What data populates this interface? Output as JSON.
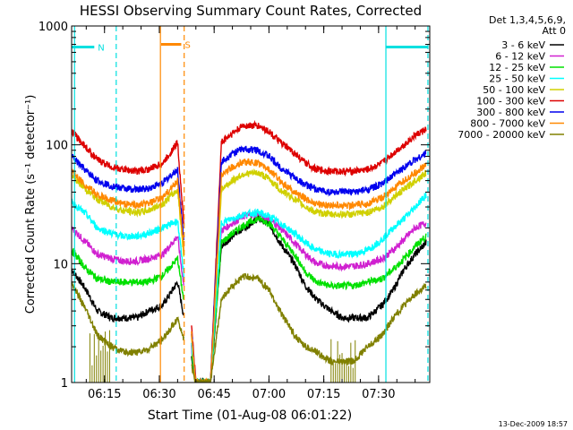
{
  "chart_data": {
    "type": "line",
    "title": "HESSI Observing Summary Count Rates, Corrected",
    "xlabel": "Start Time (01-Aug-08 06:01:22)",
    "ylabel": "Corrected Count Rate (s⁻¹ detector⁻¹)",
    "y_scale": "log",
    "ylim": [
      1,
      1000
    ],
    "xlim_minutes": [
      6.0,
      104.0
    ],
    "x_ticks": [
      {
        "label": "06:15",
        "min": 15
      },
      {
        "label": "06:30",
        "min": 30
      },
      {
        "label": "06:45",
        "min": 45
      },
      {
        "label": "07:00",
        "min": 60
      },
      {
        "label": "07:15",
        "min": 75
      },
      {
        "label": "07:30",
        "min": 90
      }
    ],
    "y_ticks": [
      {
        "label": "1",
        "value": 1
      },
      {
        "label": "10",
        "value": 10
      },
      {
        "label": "100",
        "value": 100
      },
      {
        "label": "1000",
        "value": 1000
      }
    ],
    "legend_header": [
      "Det 1,3,4,5,6,9,",
      "Att 0"
    ],
    "legend_position": "right",
    "series": [
      {
        "name": "3 - 6 keV",
        "color": "#000000",
        "x": [
          6,
          10,
          13,
          17,
          20,
          24,
          27,
          31,
          35,
          40,
          44,
          47,
          50,
          53,
          57,
          60,
          63,
          67,
          70,
          73,
          77,
          80,
          83,
          87,
          91,
          94,
          97,
          100,
          103
        ],
        "y": [
          9,
          6,
          4,
          3.5,
          3.5,
          3.5,
          4,
          4.5,
          7,
          1,
          1,
          14,
          17,
          20,
          24,
          22,
          15,
          10,
          6.5,
          5,
          4,
          3.5,
          3.5,
          3.5,
          4.5,
          6,
          9,
          12,
          15
        ]
      },
      {
        "name": "6 - 12 keV",
        "color": "#d020d0",
        "x": [
          6,
          10,
          13,
          17,
          20,
          24,
          27,
          31,
          35,
          40,
          44,
          47,
          50,
          53,
          57,
          60,
          63,
          67,
          70,
          73,
          77,
          80,
          83,
          87,
          91,
          94,
          97,
          100,
          103
        ],
        "y": [
          20,
          15,
          12,
          11,
          10.5,
          10.5,
          11,
          12,
          17,
          1,
          1,
          19,
          22,
          25,
          26,
          24,
          20,
          15,
          12,
          10,
          9.5,
          9.5,
          9.5,
          10,
          11,
          13,
          16,
          20,
          22
        ]
      },
      {
        "name": "12 - 25 keV",
        "color": "#00e000",
        "x": [
          6,
          10,
          13,
          17,
          20,
          24,
          27,
          31,
          35,
          40,
          44,
          47,
          50,
          53,
          57,
          60,
          63,
          67,
          70,
          73,
          77,
          80,
          83,
          87,
          91,
          94,
          97,
          100,
          103
        ],
        "y": [
          13,
          9,
          7.5,
          7,
          7,
          7,
          7,
          8,
          11,
          1,
          1,
          15,
          18,
          21,
          24,
          22,
          17,
          12,
          8.5,
          7,
          6.5,
          6.5,
          6.5,
          7,
          7.5,
          9,
          11,
          14,
          17
        ]
      },
      {
        "name": "25 - 50 keV",
        "color": "#00ffff",
        "x": [
          6,
          10,
          13,
          17,
          20,
          24,
          27,
          31,
          35,
          40,
          44,
          47,
          50,
          53,
          57,
          60,
          63,
          67,
          70,
          73,
          77,
          80,
          83,
          87,
          91,
          94,
          97,
          100,
          103
        ],
        "y": [
          33,
          26,
          20,
          18,
          17,
          17,
          18,
          20,
          23,
          1,
          1,
          22,
          24,
          26,
          27,
          25,
          22,
          18,
          15,
          13,
          12,
          12,
          12,
          13,
          16,
          20,
          24,
          30,
          38
        ]
      },
      {
        "name": "50 - 100 keV",
        "color": "#d0d000",
        "x": [
          6,
          10,
          13,
          17,
          20,
          24,
          27,
          31,
          35,
          40,
          44,
          47,
          50,
          53,
          57,
          60,
          63,
          67,
          70,
          73,
          77,
          80,
          83,
          87,
          91,
          94,
          97,
          100,
          103
        ],
        "y": [
          55,
          42,
          35,
          30,
          28,
          27,
          28,
          32,
          42,
          1,
          1,
          42,
          50,
          57,
          58,
          52,
          42,
          35,
          30,
          27,
          26,
          26,
          26,
          27,
          30,
          36,
          42,
          50,
          58
        ]
      },
      {
        "name": "100 - 300 keV",
        "color": "#dd0000",
        "x": [
          6,
          10,
          13,
          17,
          20,
          24,
          27,
          31,
          35,
          40,
          44,
          47,
          50,
          53,
          57,
          60,
          63,
          67,
          70,
          73,
          77,
          80,
          83,
          87,
          91,
          94,
          97,
          100,
          103
        ],
        "y": [
          130,
          95,
          75,
          65,
          62,
          60,
          62,
          70,
          105,
          1,
          1,
          105,
          125,
          145,
          145,
          130,
          105,
          85,
          70,
          62,
          60,
          60,
          60,
          62,
          70,
          85,
          100,
          120,
          135
        ]
      },
      {
        "name": "300 - 800 keV",
        "color": "#0000ee",
        "x": [
          6,
          10,
          13,
          17,
          20,
          24,
          27,
          31,
          35,
          40,
          44,
          47,
          50,
          53,
          57,
          60,
          63,
          67,
          70,
          73,
          77,
          80,
          83,
          87,
          91,
          94,
          97,
          100,
          103
        ],
        "y": [
          80,
          60,
          50,
          45,
          43,
          42,
          43,
          48,
          62,
          1,
          1,
          72,
          85,
          92,
          90,
          80,
          65,
          53,
          46,
          42,
          40,
          40,
          40,
          42,
          47,
          55,
          65,
          75,
          85
        ]
      },
      {
        "name": "800 - 7000 keV",
        "color": "#ff8800",
        "x": [
          6,
          10,
          13,
          17,
          20,
          24,
          27,
          31,
          35,
          40,
          44,
          47,
          50,
          53,
          57,
          60,
          63,
          67,
          70,
          73,
          77,
          80,
          83,
          87,
          91,
          94,
          97,
          100,
          103
        ],
        "y": [
          60,
          45,
          38,
          34,
          32,
          31,
          32,
          36,
          50,
          1,
          1,
          55,
          65,
          72,
          70,
          62,
          50,
          40,
          35,
          32,
          31,
          31,
          31,
          32,
          36,
          42,
          50,
          58,
          68
        ]
      },
      {
        "name": "7000 - 20000 keV",
        "color": "#808000",
        "x": [
          6,
          10,
          13,
          17,
          20,
          24,
          27,
          31,
          35,
          40,
          44,
          47,
          50,
          53,
          57,
          60,
          63,
          67,
          70,
          73,
          77,
          80,
          83,
          87,
          91,
          94,
          97,
          100,
          103
        ],
        "y": [
          7,
          4,
          2.5,
          2,
          1.8,
          1.8,
          1.9,
          2.3,
          3.5,
          1,
          1,
          5,
          6.5,
          7.8,
          7.5,
          6,
          4,
          2.5,
          2,
          1.8,
          1.5,
          1.5,
          1.5,
          2,
          2.5,
          3.5,
          4.5,
          5.5,
          6.5
        ]
      }
    ],
    "annotations": [
      {
        "label": "N",
        "color": "#00e0e0",
        "bar_y": 665,
        "bar_x": [
          6,
          12.2
        ],
        "line_min": [
          6.8,
          18.2
        ]
      },
      {
        "label": "S",
        "color": "#ff8800",
        "bar_y": 700,
        "bar_x": [
          30.5,
          36
        ],
        "line_min": [
          30.3,
          36.8
        ]
      },
      {
        "label": "",
        "color": "#00e0e0",
        "bar_y": 665,
        "bar_x": [
          92,
          103.5
        ],
        "line_min": [
          92,
          103.5
        ]
      }
    ],
    "timestamp": "13-Dec-2009 18:57"
  }
}
